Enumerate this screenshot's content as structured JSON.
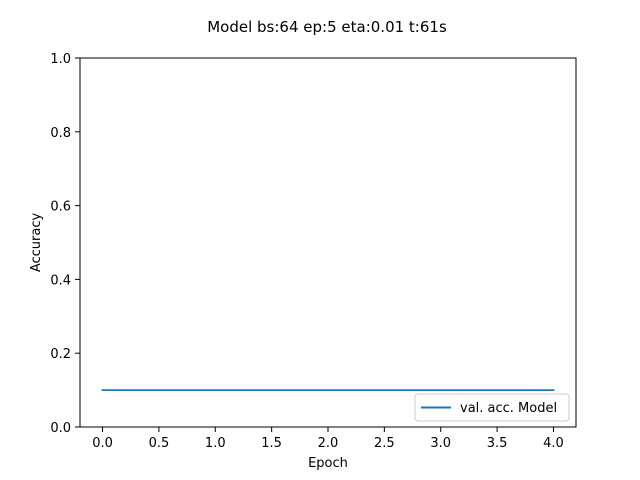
{
  "chart_data": {
    "type": "line",
    "title": "Model bs:64 ep:5 eta:0.01 t:61s",
    "xlabel": "Epoch",
    "ylabel": "Accuracy",
    "xlim": [
      -0.2,
      4.2
    ],
    "ylim": [
      0.0,
      1.0
    ],
    "xticks": [
      0.0,
      0.5,
      1.0,
      1.5,
      2.0,
      2.5,
      3.0,
      3.5,
      4.0
    ],
    "xtick_labels": [
      "0.0",
      "0.5",
      "1.0",
      "1.5",
      "2.0",
      "2.5",
      "3.0",
      "3.5",
      "4.0"
    ],
    "yticks": [
      0.0,
      0.2,
      0.4,
      0.6,
      0.8,
      1.0
    ],
    "ytick_labels": [
      "0.0",
      "0.2",
      "0.4",
      "0.6",
      "0.8",
      "1.0"
    ],
    "grid": false,
    "legend_position": "bottom-right",
    "series": [
      {
        "name": "val. acc. Model",
        "color": "#1f77b4",
        "x": [
          0,
          1,
          2,
          3,
          4
        ],
        "y": [
          0.1,
          0.1,
          0.1,
          0.1,
          0.1
        ]
      }
    ]
  }
}
